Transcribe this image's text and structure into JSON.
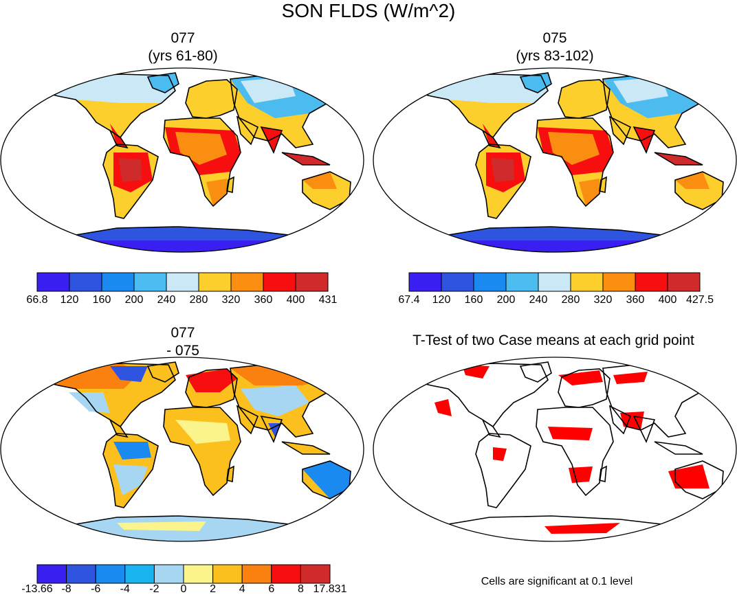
{
  "figure_title": "SON FLDS (W/m^2)",
  "panels": [
    {
      "id": "case1",
      "title_line1": "077",
      "title_line2": "(yrs 61-80)",
      "colorbar": {
        "colors": [
          "#3a1ff2",
          "#2f55e0",
          "#1a8af0",
          "#4cbbef",
          "#cbe8f7",
          "#fccf2c",
          "#fa8e10",
          "#f70f0f",
          "#cf2b2b"
        ],
        "labels": [
          "66.8",
          "120",
          "160",
          "200",
          "240",
          "280",
          "320",
          "360",
          "400",
          "431"
        ]
      }
    },
    {
      "id": "case2",
      "title_line1": "075",
      "title_line2": "(yrs 83-102)",
      "colorbar": {
        "colors": [
          "#3a1ff2",
          "#2f55e0",
          "#1a8af0",
          "#4cbbef",
          "#cbe8f7",
          "#fccf2c",
          "#fa8e10",
          "#f70f0f",
          "#cf2b2b"
        ],
        "labels": [
          "67.4",
          "120",
          "160",
          "200",
          "240",
          "280",
          "320",
          "360",
          "400",
          "427.5"
        ]
      }
    },
    {
      "id": "diff",
      "title_line1": "077",
      "title_line2": "- 075",
      "colorbar": {
        "colors": [
          "#3a1ff2",
          "#2f55e0",
          "#1a8af0",
          "#18b4f0",
          "#a6d6f2",
          "#fbf48c",
          "#fcc01e",
          "#fa8010",
          "#f70f0f",
          "#cf2b2b"
        ],
        "labels": [
          "-13.66",
          "-8",
          "-6",
          "-4",
          "-2",
          "0",
          "2",
          "4",
          "6",
          "8",
          "17.831"
        ]
      }
    },
    {
      "id": "ttest",
      "title_line1": "T-Test of two Case means at each grid point",
      "footer": "Cells are significant at 0.1 level",
      "significant_color": "#ff0000"
    }
  ]
}
